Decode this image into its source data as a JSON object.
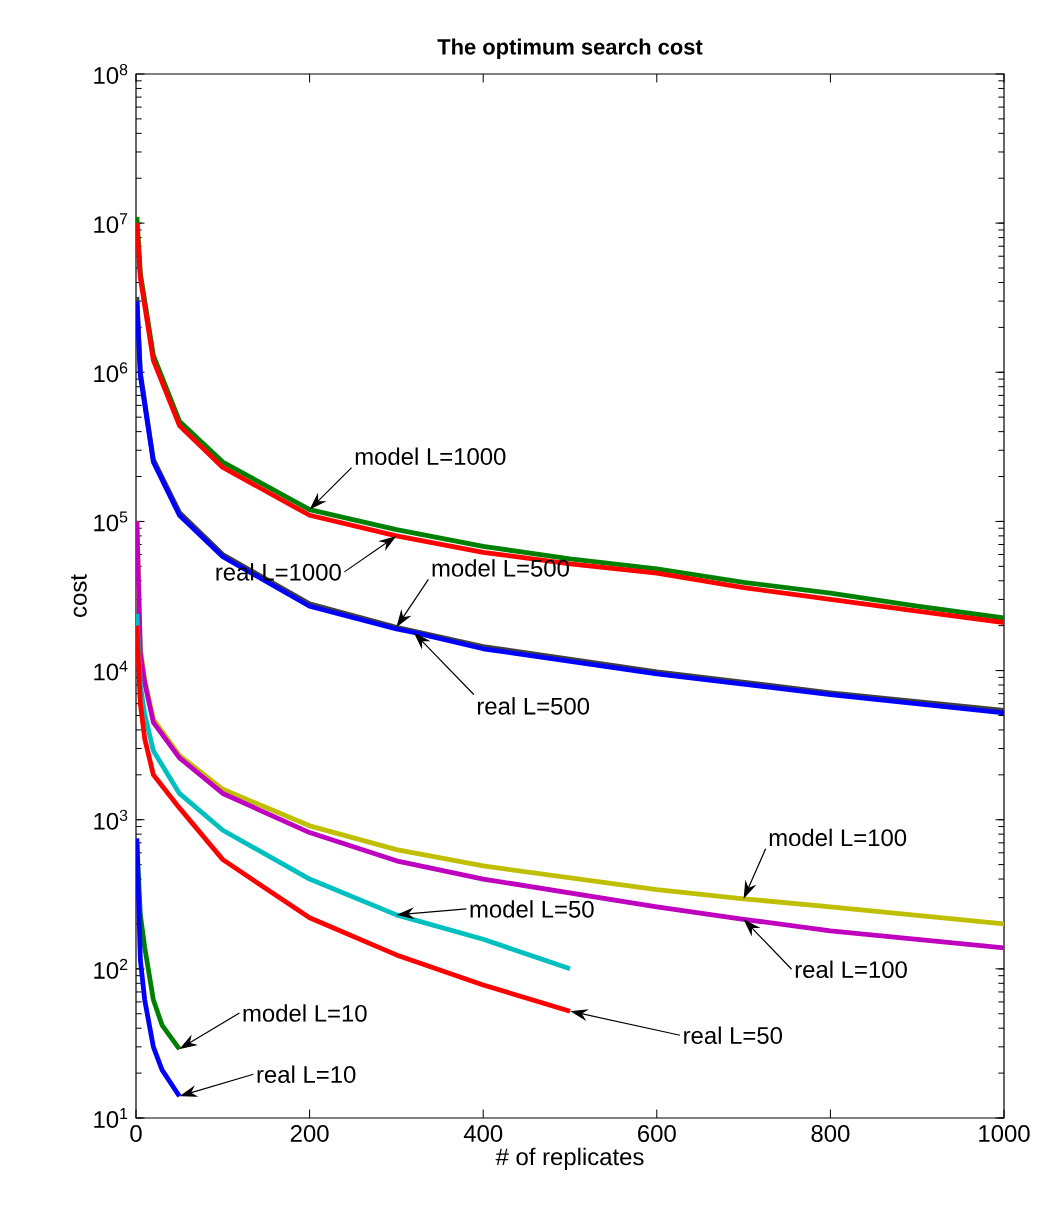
{
  "chart_data": {
    "type": "line",
    "title": "The optimum search cost",
    "xlabel": "# of replicates",
    "ylabel": "cost",
    "log": "y",
    "xlim": [
      0,
      1000
    ],
    "ylim": [
      10,
      100000000
    ],
    "xticks": [
      0,
      200,
      400,
      600,
      800,
      1000
    ],
    "yticks": [
      {
        "value": 10,
        "label": "10$^{1}$"
      },
      {
        "value": 100,
        "label": "10$^{2}$"
      },
      {
        "value": 1000,
        "label": "10$^{3}$"
      },
      {
        "value": 10000,
        "label": "10$^{4}$"
      },
      {
        "value": 100000,
        "label": "10$^{5}$"
      },
      {
        "value": 1000000,
        "label": "10$^{6}$"
      },
      {
        "value": 10000000,
        "label": "10$^{7}$"
      },
      {
        "value": 100000000,
        "label": "10$^{8}$"
      }
    ],
    "series": [
      {
        "color": "#008000",
        "x": [
          1,
          5,
          20,
          50,
          100,
          200,
          300,
          400,
          500,
          600,
          700,
          800,
          900,
          1000
        ],
        "values": [
          11000000,
          4600000,
          1300000,
          470000,
          250000,
          120000,
          88000,
          68000,
          56000,
          48000,
          39000,
          33000,
          27000,
          22500
        ]
      },
      {
        "color": "#ff0000",
        "x": [
          1,
          5,
          20,
          50,
          100,
          200,
          300,
          400,
          500,
          600,
          700,
          800,
          900,
          1000
        ],
        "values": [
          10000000,
          4300000,
          1200000,
          440000,
          230000,
          110000,
          80000,
          62000,
          52000,
          45000,
          36000,
          30000,
          25000,
          21000
        ]
      },
      {
        "color": "#404040",
        "x": [
          1,
          5,
          20,
          50,
          100,
          200,
          300,
          400,
          600,
          800,
          1000
        ],
        "values": [
          3200000,
          1000000,
          260000,
          115000,
          60000,
          28000,
          19500,
          14500,
          9800,
          7100,
          5400
        ]
      },
      {
        "color": "#0000ff",
        "x": [
          1,
          5,
          20,
          50,
          100,
          200,
          300,
          320,
          400,
          600,
          800,
          1000
        ],
        "values": [
          3000000,
          950000,
          250000,
          110000,
          58000,
          27000,
          19000,
          18000,
          14000,
          9500,
          6900,
          5200
        ]
      },
      {
        "color": "#bfbf00",
        "x": [
          1,
          5,
          10,
          20,
          50,
          100,
          200,
          300,
          400,
          600,
          700,
          800,
          1000
        ],
        "values": [
          100000,
          14000,
          8700,
          4700,
          2700,
          1600,
          910,
          630,
          490,
          340,
          295,
          260,
          200
        ]
      },
      {
        "color": "#bf00bf",
        "x": [
          1,
          5,
          10,
          20,
          50,
          100,
          200,
          300,
          400,
          600,
          700,
          800,
          1000
        ],
        "values": [
          100000,
          13000,
          8300,
          4500,
          2600,
          1500,
          820,
          530,
          400,
          260,
          215,
          180,
          138
        ]
      },
      {
        "color": "#00bfbf",
        "x": [
          1,
          5,
          10,
          20,
          50,
          100,
          200,
          300,
          400,
          500
        ],
        "values": [
          24000,
          8000,
          5100,
          2900,
          1500,
          850,
          400,
          230,
          158,
          100
        ]
      },
      {
        "color": "#ff0000",
        "x": [
          1,
          5,
          10,
          20,
          50,
          100,
          200,
          300,
          400,
          500
        ],
        "values": [
          20000,
          6000,
          3500,
          2000,
          1200,
          540,
          220,
          124,
          78,
          52
        ]
      },
      {
        "color": "#008000",
        "x": [
          1,
          5,
          10,
          20,
          30,
          50
        ],
        "values": [
          690,
          230,
          140,
          62,
          42,
          29
        ]
      },
      {
        "color": "#0000ff",
        "x": [
          1,
          5,
          10,
          20,
          30,
          50
        ],
        "values": [
          750,
          115,
          62,
          30,
          21,
          14
        ]
      }
    ],
    "annotations": [
      {
        "text": "model L=1000",
        "x": 200,
        "y": 120000
      },
      {
        "text": "real L=1000",
        "x": 300,
        "y": 80000
      },
      {
        "text": "model L=500",
        "x": 300,
        "y": 19500
      },
      {
        "text": "real L=500",
        "x": 320,
        "y": 18000
      },
      {
        "text": "model L=100",
        "x": 700,
        "y": 295
      },
      {
        "text": "real L=100",
        "x": 700,
        "y": 215
      },
      {
        "text": "model L=50",
        "x": 300,
        "y": 230
      },
      {
        "text": "real L=50",
        "x": 500,
        "y": 52
      },
      {
        "text": "model L=10",
        "x": 50,
        "y": 29
      },
      {
        "text": "real L=10",
        "x": 50,
        "y": 14
      }
    ]
  }
}
